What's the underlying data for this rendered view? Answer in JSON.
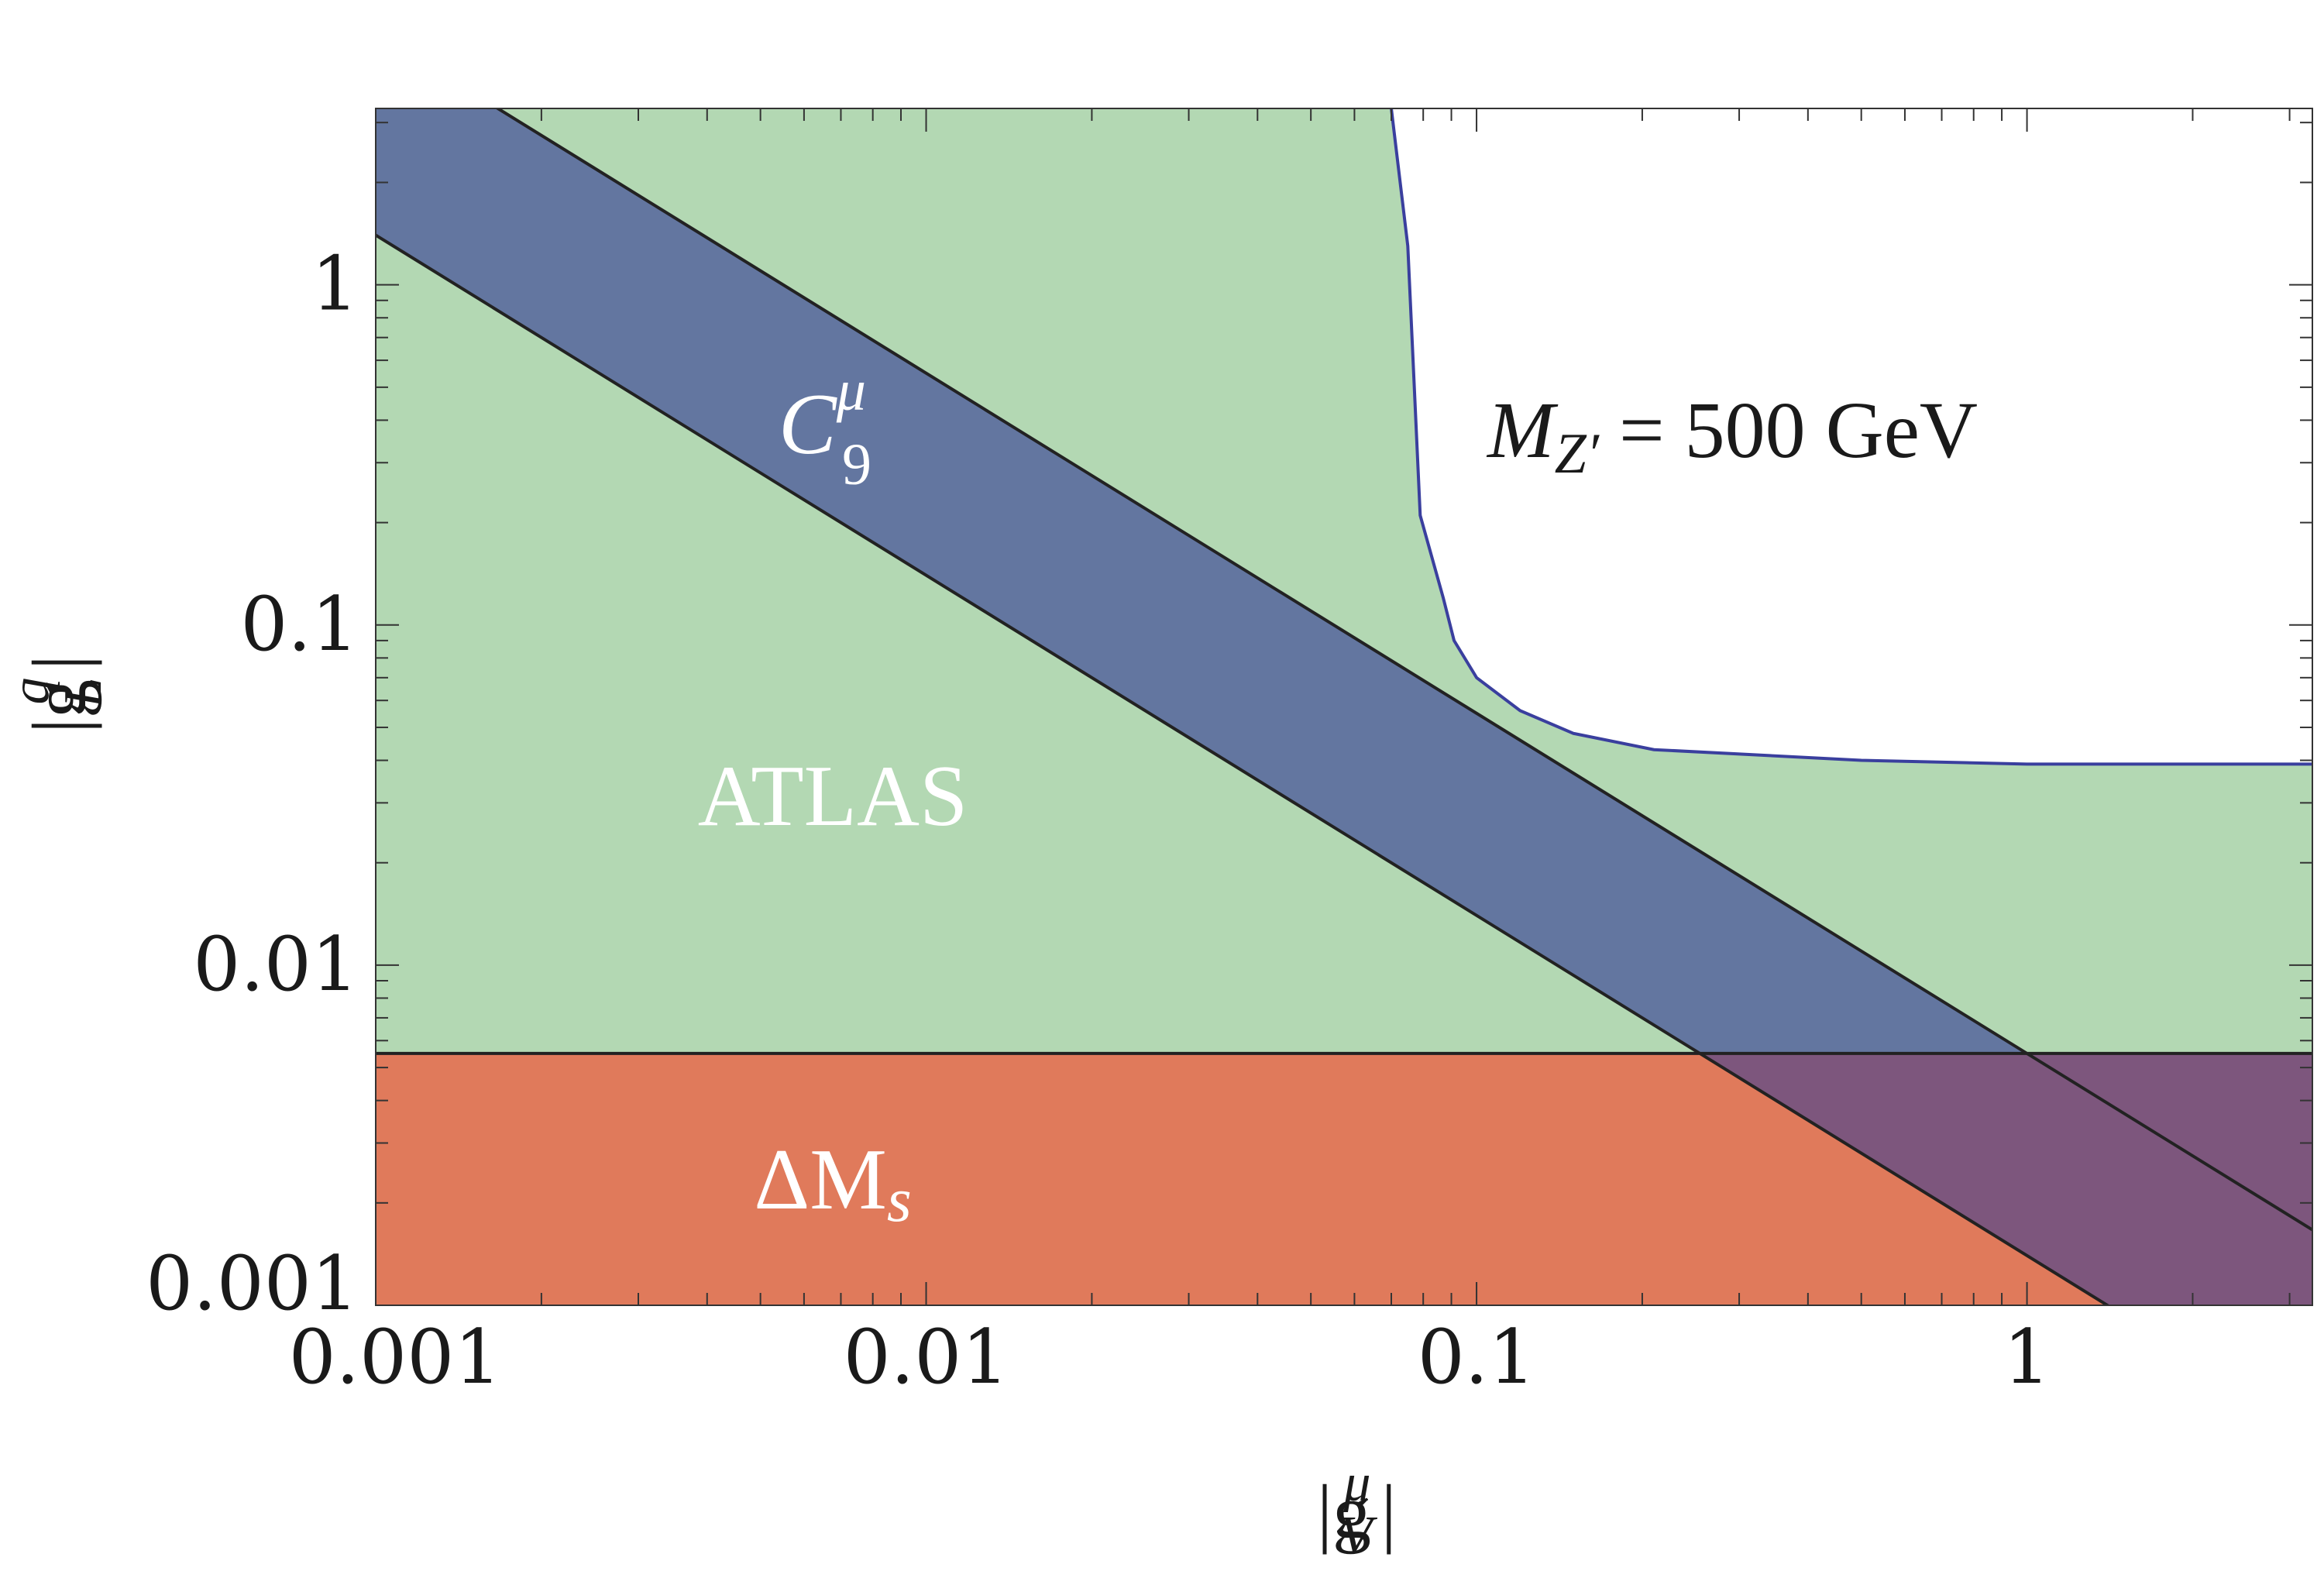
{
  "chart_data": {
    "type": "area",
    "log_x": true,
    "log_y": true,
    "xlim": [
      0.001,
      3.3
    ],
    "ylim": [
      0.001,
      3.3
    ],
    "x_ticks": [
      {
        "value": 0.001,
        "label": "0.001"
      },
      {
        "value": 0.01,
        "label": "0.01"
      },
      {
        "value": 0.1,
        "label": "0.1"
      },
      {
        "value": 1,
        "label": "1"
      }
    ],
    "y_ticks": [
      {
        "value": 0.001,
        "label": "0.001"
      },
      {
        "value": 0.01,
        "label": "0.01"
      },
      {
        "value": 0.1,
        "label": "0.1"
      },
      {
        "value": 1,
        "label": "1"
      }
    ],
    "xlabel": {
      "base": "|g",
      "sup": "μ",
      "sub": "V",
      "close": "|"
    },
    "ylabel": {
      "base": "|g",
      "sup": "q",
      "sub": "L",
      "close": "|"
    },
    "annotation": {
      "main": "M",
      "sub": "Z′",
      "rest": " = 500 GeV"
    },
    "regions": [
      {
        "name": "ATLAS",
        "color": "#b3d8b3",
        "edge_color": "#3a3f9e",
        "boundary": [
          [
            0.07,
            3.3
          ],
          [
            0.075,
            1.3
          ],
          [
            0.079,
            0.21
          ],
          [
            0.087,
            0.12
          ],
          [
            0.091,
            0.09
          ],
          [
            0.1,
            0.07
          ],
          [
            0.12,
            0.056
          ],
          [
            0.15,
            0.048
          ],
          [
            0.21,
            0.043
          ],
          [
            0.5,
            0.04
          ],
          [
            1.0,
            0.039
          ],
          [
            3.3,
            0.039
          ]
        ]
      },
      {
        "name": "ΔMs",
        "label_main": "ΔM",
        "label_sub": "s",
        "color": "#e07a5b",
        "y_max": 0.0055
      },
      {
        "name": "C9μ",
        "label_main": "C",
        "label_sub": "9",
        "label_sup": "μ",
        "color": "#6376a0",
        "overlap_color": "#7d567d",
        "band": {
          "law": "y * x = k",
          "k_upper": 0.0055,
          "k_lower": 0.0014
        }
      }
    ]
  }
}
